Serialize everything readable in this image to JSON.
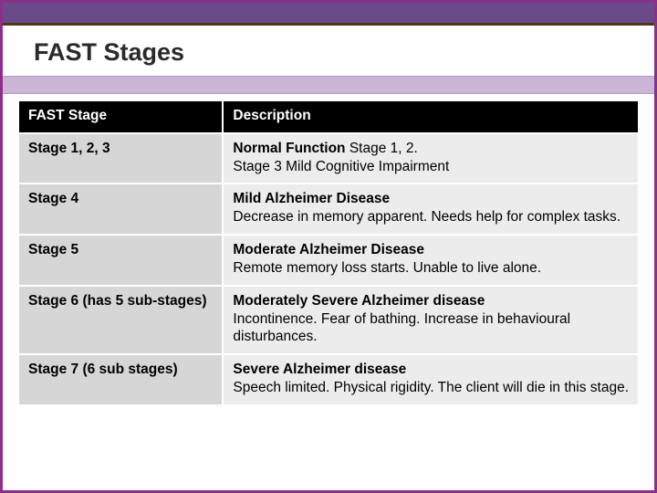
{
  "colors": {
    "outer_border": "#8a2f8a",
    "top_bar": "#6b4a8a",
    "thin_line": "#4a3a1a",
    "lavender_band": "#c9b6d6",
    "header_bg": "#000000",
    "header_fg": "#ffffff",
    "stage_cell_bg": "#d6d6d6",
    "desc_cell_bg": "#ececec",
    "cell_border": "#ffffff"
  },
  "typography": {
    "title_fontsize": 27,
    "cell_fontsize": 15.5,
    "font_family": "Verdana"
  },
  "slide": {
    "title": "FAST Stages"
  },
  "table": {
    "type": "table",
    "columns": [
      "FAST Stage",
      "Description"
    ],
    "column_widths_pct": [
      33,
      67
    ],
    "rows": [
      {
        "stage": "Stage 1, 2, 3",
        "desc_bold": "Normal Function",
        "desc_after_bold": " Stage 1, 2.",
        "desc_rest": "Stage 3 Mild Cognitive Impairment"
      },
      {
        "stage": "Stage 4",
        "desc_bold": "Mild Alzheimer Disease",
        "desc_after_bold": "",
        "desc_rest": "Decrease in memory apparent. Needs help for complex tasks."
      },
      {
        "stage": "Stage 5",
        "desc_bold": "Moderate Alzheimer Disease",
        "desc_after_bold": "",
        "desc_rest": "Remote memory loss starts. Unable to live alone."
      },
      {
        "stage": "Stage 6 (has 5 sub-stages)",
        "desc_bold": "Moderately Severe Alzheimer disease",
        "desc_after_bold": "",
        "desc_rest": "Incontinence. Fear of bathing. Increase in behavioural disturbances."
      },
      {
        "stage": "Stage 7 (6 sub stages)",
        "desc_bold": "Severe Alzheimer disease",
        "desc_after_bold": "",
        "desc_rest": "Speech limited. Physical rigidity. The client will die in this stage."
      }
    ]
  }
}
